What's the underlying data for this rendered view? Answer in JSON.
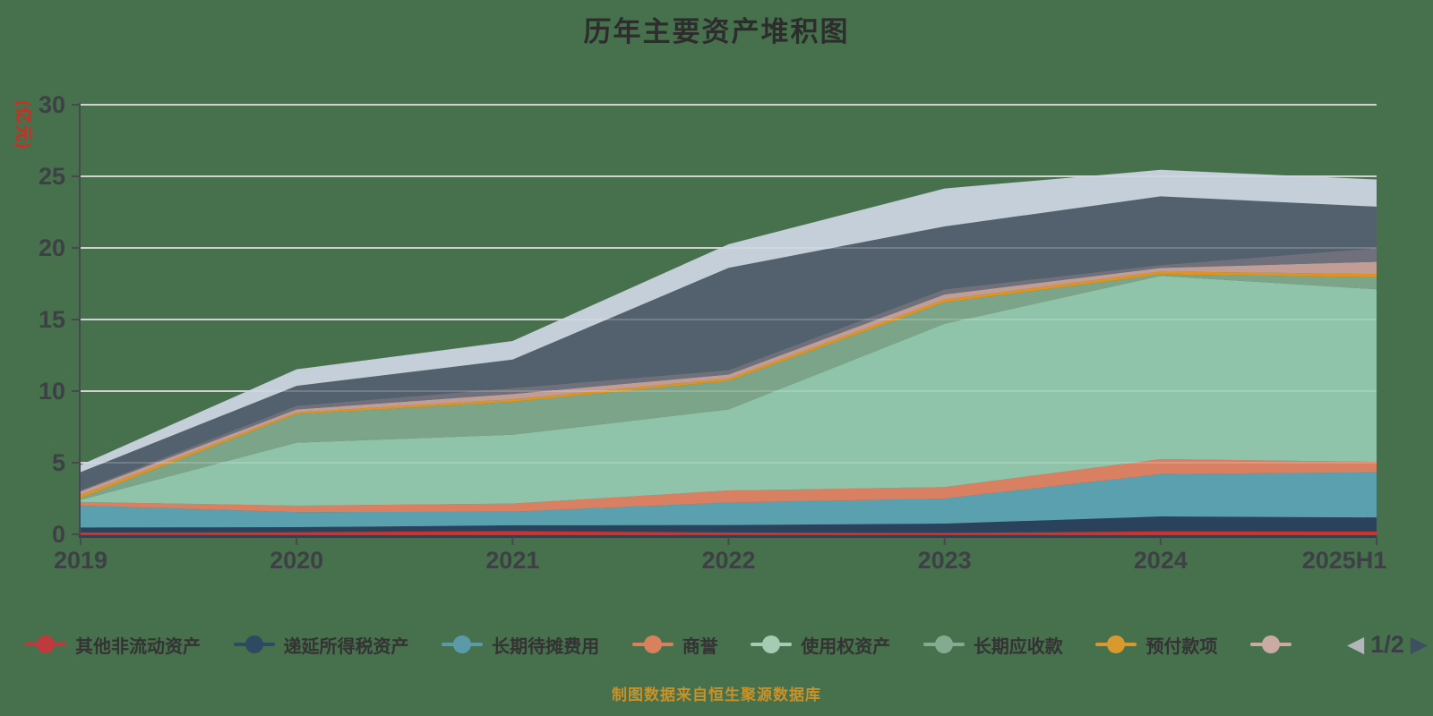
{
  "title": "历年主要资产堆积图",
  "y_axis": {
    "unit_label": "(亿元)"
  },
  "source_note": "制图数据来自恒生聚源数据库",
  "pager": {
    "current": "1/2",
    "prev_icon": "◀",
    "next_icon": "▶"
  },
  "colors": {
    "background": "#47704d",
    "gridline": "#c9c9c9",
    "axis": "#464a4e",
    "title_text": "#2d2d2d",
    "axis_text": "#3d4045",
    "unit_text": "#d9281f",
    "source_text": "#c8922a",
    "legend_text": "#333333",
    "pager_prev": "#b2b6ba",
    "pager_next": "#3d4f61"
  },
  "chart_data": {
    "type": "area",
    "stacked": true,
    "title": "历年主要资产堆积图",
    "ylabel": "(亿元)",
    "ylim": [
      0,
      30
    ],
    "yticks": [
      0,
      5,
      10,
      15,
      20,
      25,
      30
    ],
    "grid": true,
    "legend_position": "bottom",
    "legend_pages": "1/2",
    "categories": [
      "2019",
      "2020",
      "2021",
      "2022",
      "2023",
      "2024",
      "2025H1"
    ],
    "series": [
      {
        "name": "其他非流动资产",
        "label_visible": true,
        "legend_page": 1,
        "color": "#cf3330",
        "legend_color": "#bf3a3c",
        "values": [
          0.13,
          0.15,
          0.22,
          0.13,
          0.1,
          0.2,
          0.19
        ]
      },
      {
        "name": "递延所得税资产",
        "label_visible": true,
        "legend_page": 1,
        "color": "#2a425c",
        "legend_color": "#2e4a62",
        "values": [
          0.35,
          0.35,
          0.41,
          0.52,
          0.65,
          1.05,
          0.99
        ]
      },
      {
        "name": "长期待摊费用",
        "label_visible": true,
        "legend_page": 1,
        "color": "#5ba0af",
        "legend_color": "#5b9aa9",
        "values": [
          1.53,
          1.05,
          0.95,
          1.57,
          1.75,
          2.95,
          3.15
        ]
      },
      {
        "name": "商誉",
        "label_visible": true,
        "legend_page": 1,
        "color": "#d97f62",
        "legend_color": "#d9805f",
        "values": [
          0.25,
          0.45,
          0.57,
          0.84,
          0.8,
          1.05,
          0.73
        ]
      },
      {
        "name": "使用权资产",
        "label_visible": true,
        "legend_page": 1,
        "color": "#8fc4ab",
        "legend_color": "#a5ccb3",
        "values": [
          0.15,
          4.4,
          4.8,
          5.66,
          11.4,
          12.8,
          12.05
        ]
      },
      {
        "name": "长期应收款",
        "label_visible": true,
        "legend_page": 1,
        "color": "#7ba488",
        "legend_color": "#84ab92",
        "values": [
          0.12,
          2.0,
          2.3,
          2.0,
          1.5,
          0.1,
          0.85
        ]
      },
      {
        "name": "预付款项",
        "label_visible": true,
        "legend_page": 1,
        "color": "#e0941f",
        "legend_color": "#d8992e",
        "values": [
          0.22,
          0.12,
          0.18,
          0.17,
          0.2,
          0.2,
          0.22
        ]
      },
      {
        "name": "",
        "label_visible": false,
        "legend_page": 1,
        "color": "#c19d95",
        "legend_color": "#c9aba3",
        "values": [
          0.25,
          0.2,
          0.37,
          0.27,
          0.35,
          0.25,
          0.85
        ]
      },
      {
        "name": "",
        "label_visible": false,
        "legend_page": 2,
        "color": "#6f707b",
        "legend_color": "#6f707b",
        "values": [
          0.08,
          0.25,
          0.4,
          0.3,
          0.35,
          0.2,
          0.95
        ]
      },
      {
        "name": "",
        "label_visible": false,
        "legend_page": 2,
        "color": "#53616e",
        "legend_color": "#53616e",
        "values": [
          1.26,
          1.4,
          2.0,
          7.15,
          4.4,
          4.8,
          2.9
        ]
      },
      {
        "name": "",
        "label_visible": false,
        "legend_page": 2,
        "color": "#c4cfda",
        "legend_color": "#c4cfda",
        "values": [
          0.5,
          1.15,
          1.3,
          1.65,
          2.65,
          1.85,
          1.9
        ]
      }
    ]
  }
}
